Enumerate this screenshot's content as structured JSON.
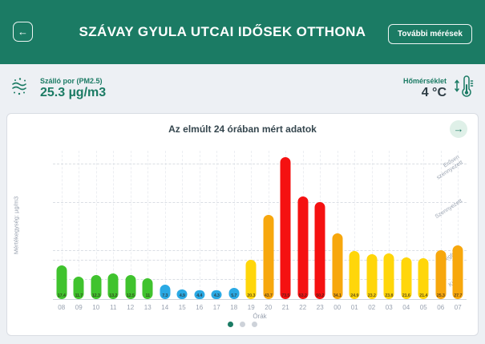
{
  "header": {
    "title": "SZÁVAY GYULA UTCAI IDŐSEK OTTHONA",
    "more_button": "További mérések"
  },
  "icons": {
    "back": "←",
    "next": "→"
  },
  "metrics": {
    "pm": {
      "label": "Szálló por (PM2.5)",
      "value": "25.3 µg/m3"
    },
    "temperature": {
      "label": "Hőmérséklet",
      "value": "4 °C"
    }
  },
  "card": {
    "title": "Az elmúlt 24 órában mért adatok"
  },
  "chart_data": {
    "type": "bar",
    "title": "Az elmúlt 24 órában mért adatok",
    "xlabel": "Órák",
    "ylabel": "Mértékegység: µg/m3",
    "ylim": [
      0,
      77
    ],
    "grid": "dashed",
    "categories": [
      "08",
      "09",
      "10",
      "11",
      "12",
      "13",
      "14",
      "15",
      "16",
      "17",
      "18",
      "19",
      "20",
      "21",
      "22",
      "23",
      "00",
      "01",
      "02",
      "03",
      "04",
      "05",
      "06",
      "07"
    ],
    "values": [
      17.4,
      11.7,
      12.3,
      13.2,
      12.5,
      11,
      7.3,
      4.9,
      4.4,
      4.3,
      5.7,
      20.3,
      43.7,
      73.5,
      53.2,
      50.2,
      34.1,
      24.9,
      23.2,
      23.8,
      21.6,
      21.4,
      25.3,
      27.7
    ],
    "value_labels": [
      "17.4",
      "11.7",
      "12.3",
      "13.2",
      "12.5",
      "11",
      "7.3",
      "4.9",
      "4.4",
      "4.3",
      "5.7",
      "20.3",
      "43.7",
      "73.5",
      "53.2",
      "50.2",
      "34.1",
      "24.9",
      "23.2",
      "23.8",
      "21.6",
      "21.4",
      "25.3",
      "27.7"
    ],
    "bands": [
      {
        "label": "Kiváló",
        "line": 10,
        "color": "#2aa9e4"
      },
      {
        "label": "Jó",
        "line": 20,
        "color": "#40c32e"
      },
      {
        "label": "Megfelelő",
        "line": 25,
        "color": "#ffd60a"
      },
      {
        "label": "Szennyezett",
        "line": 50,
        "color": "#f7a70d"
      },
      {
        "label": "Erősen\nszennyezett",
        "line": 70,
        "color": "#f51111"
      }
    ]
  },
  "pagination": {
    "count": 3,
    "active_index": 0
  },
  "colors": {
    "brand": "#1b7b64",
    "page_bg": "#edf0f4",
    "dot_inactive": "#cdd2d9"
  }
}
